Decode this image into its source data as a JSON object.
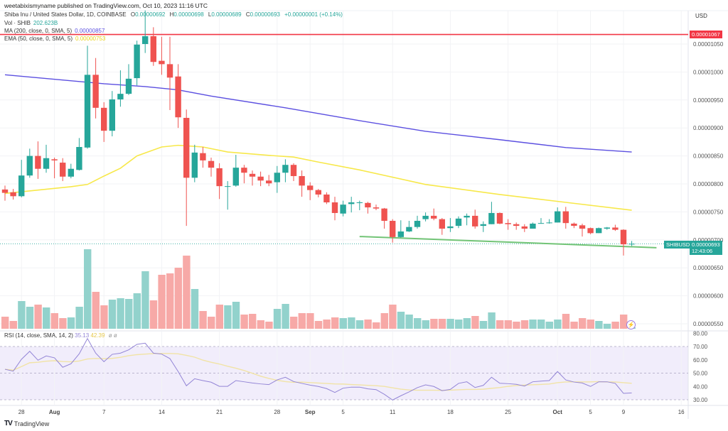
{
  "header": {
    "published": "weetabixismyname published on TradingView.com, Oct 10, 2023 11:16 UTC"
  },
  "legend": {
    "symbol": "Shiba Inu / United States Dollar, 1D, COINBASE",
    "o_label": "O",
    "o": "0.00000692",
    "h_label": "H",
    "h": "0.00000698",
    "l_label": "L",
    "l": "0.00000689",
    "c_label": "C",
    "c": "0.00000693",
    "change": "+0.00000001 (+0.14%)",
    "vol_label": "Vol · SHIB",
    "vol": "202.623B",
    "ma_label": "MA (200, close, 0, SMA, 5)",
    "ma": "0.00000857",
    "ema_label": "EMA (50, close, 0, SMA, 5)",
    "ema": "0.00000753"
  },
  "rsi_legend": {
    "label": "RSI (14, close, SMA, 14, 2)",
    "rsi": "35.13",
    "rsi_ma": "42.39",
    "icons": "ø ø"
  },
  "axis": {
    "currency": "USD",
    "alert_price": "0.00001067",
    "symbol_tag": "SHIBUSD",
    "last_price": "0.00000693",
    "countdown": "12:43:06"
  },
  "footer": {
    "logo": "TV",
    "brand": "TradingView"
  },
  "colors": {
    "up": "#26a69a",
    "down": "#ef5350",
    "vol_up": "#92d2cc",
    "vol_down": "#f7a9a7",
    "ma200": "#5b4fe0",
    "ema50": "#f7e84a",
    "alert_line": "#f23645",
    "trendline": "#72c476",
    "rsi": "#9385d6",
    "rsi_ma": "#f1e3a6",
    "rsi_band": "#f1edfb"
  },
  "chart_data": {
    "type": "candlestick",
    "title": "Shiba Inu / United States Dollar, 1D, COINBASE",
    "price_ticks": [
      "0.00001050",
      "0.00001000",
      "0.00000950",
      "0.00000900",
      "0.00000850",
      "0.00000800",
      "0.00000750",
      "0.00000700",
      "0.00000650",
      "0.00000600",
      "0.00000550"
    ],
    "rsi_ticks": [
      "80.00",
      "70.00",
      "60.00",
      "50.00",
      "40.00",
      "30.00"
    ],
    "x_ticks": [
      {
        "label": "28",
        "date": "2023-07-28",
        "month": false
      },
      {
        "label": "Aug",
        "date": "2023-08-01",
        "month": true
      },
      {
        "label": "7",
        "date": "2023-08-07",
        "month": false
      },
      {
        "label": "14",
        "date": "2023-08-14",
        "month": false
      },
      {
        "label": "21",
        "date": "2023-08-21",
        "month": false
      },
      {
        "label": "28",
        "date": "2023-08-28",
        "month": false
      },
      {
        "label": "Sep",
        "date": "2023-09-01",
        "month": true
      },
      {
        "label": "5",
        "date": "2023-09-05",
        "month": false
      },
      {
        "label": "11",
        "date": "2023-09-11",
        "month": false
      },
      {
        "label": "18",
        "date": "2023-09-18",
        "month": false
      },
      {
        "label": "25",
        "date": "2023-09-25",
        "month": false
      },
      {
        "label": "Oct",
        "date": "2023-10-01",
        "month": true
      },
      {
        "label": "5",
        "date": "2023-10-05",
        "month": false
      },
      {
        "label": "9",
        "date": "2023-10-09",
        "month": false
      },
      {
        "label": "16",
        "date": "2023-10-16",
        "month": false
      }
    ],
    "candle_columns": [
      "date",
      "open",
      "high",
      "low",
      "close",
      "volume"
    ],
    "candles": [
      [
        "2023-07-26",
        7.9e-06,
        7.97e-06,
        7.7e-06,
        7.84e-06,
        1700000000000.0
      ],
      [
        "2023-07-27",
        7.85e-06,
        7.91e-06,
        7.72e-06,
        7.78e-06,
        1100000000000.0
      ],
      [
        "2023-07-28",
        7.78e-06,
        8.43e-06,
        7.76e-06,
        8.15e-06,
        3900000000000.0
      ],
      [
        "2023-07-29",
        8.15e-06,
        8.63e-06,
        8.11e-06,
        8.5e-06,
        3100000000000.0
      ],
      [
        "2023-07-30",
        8.5e-06,
        8.76e-06,
        8.09e-06,
        8.27e-06,
        3400000000000.0
      ],
      [
        "2023-07-31",
        8.27e-06,
        8.7e-06,
        8.2e-06,
        8.46e-06,
        3000000000000.0
      ],
      [
        "2023-08-01",
        8.44e-06,
        8.47e-06,
        8.1e-06,
        8.42e-06,
        2200000000000.0
      ],
      [
        "2023-08-02",
        8.38e-06,
        8.46e-06,
        8.05e-06,
        8.13e-06,
        1500000000000.0
      ],
      [
        "2023-08-03",
        8.13e-06,
        8.36e-06,
        8.1e-06,
        8.27e-06,
        1600000000000.0
      ],
      [
        "2023-08-04",
        8.25e-06,
        8.82e-06,
        8.24e-06,
        8.66e-06,
        3100000000000.0
      ],
      [
        "2023-08-05",
        8.65e-06,
        1.047e-05,
        8.63e-06,
        9.95e-06,
        11200000000000.0
      ],
      [
        "2023-08-06",
        9.95e-06,
        1.025e-05,
        9.17e-06,
        9.36e-06,
        5200000000000.0
      ],
      [
        "2023-08-07",
        9.36e-06,
        9.46e-06,
        8.75e-06,
        8.95e-06,
        3300000000000.0
      ],
      [
        "2023-08-08",
        8.95e-06,
        9.66e-06,
        8.85e-06,
        9.51e-06,
        4100000000000.0
      ],
      [
        "2023-08-09",
        9.51e-06,
        1.003e-05,
        9.38e-06,
        9.61e-06,
        4300000000000.0
      ],
      [
        "2023-08-10",
        9.61e-06,
        1.014e-05,
        9.59e-06,
        9.88e-06,
        4200000000000.0
      ],
      [
        "2023-08-11",
        9.89e-06,
        1.056e-05,
        9.76e-06,
        1.049e-05,
        5000000000000.0
      ],
      [
        "2023-08-12",
        1.05e-05,
        1.11e-05,
        1.034e-05,
        1.064e-05,
        8100000000000.0
      ],
      [
        "2023-08-13",
        1.064e-05,
        1.08e-05,
        1.011e-05,
        1.018e-05,
        4000000000000.0
      ],
      [
        "2023-08-14",
        1.02e-05,
        1.063e-05,
        9.95e-06,
        1.014e-05,
        7600000000000.0
      ],
      [
        "2023-08-15",
        1.014e-05,
        1.063e-05,
        9.32e-06,
        9.9e-06,
        7800000000000.0
      ],
      [
        "2023-08-16",
        9.92e-06,
        1.014e-05,
        9e-06,
        9.19e-06,
        8600000000000.0
      ],
      [
        "2023-08-17",
        9.18e-06,
        9.33e-06,
        7.25e-06,
        8.11e-06,
        10300000000000.0
      ],
      [
        "2023-08-18",
        8.11e-06,
        8.7e-06,
        8.03e-06,
        8.56e-06,
        5600000000000.0
      ],
      [
        "2023-08-19",
        8.55e-06,
        8.66e-06,
        8.29e-06,
        8.42e-06,
        2500000000000.0
      ],
      [
        "2023-08-20",
        8.41e-06,
        8.47e-06,
        8.13e-06,
        8.29e-06,
        1700000000000.0
      ],
      [
        "2023-08-21",
        8.28e-06,
        8.37e-06,
        7.73e-06,
        7.96e-06,
        3400000000000.0
      ],
      [
        "2023-08-22",
        7.95e-06,
        8.05e-06,
        7.54e-06,
        7.96e-06,
        3300000000000.0
      ],
      [
        "2023-08-23",
        7.97e-06,
        8.52e-06,
        7.95e-06,
        8.29e-06,
        3800000000000.0
      ],
      [
        "2023-08-24",
        8.29e-06,
        8.34e-06,
        8.01e-06,
        8.2e-06,
        2000000000000.0
      ],
      [
        "2023-08-25",
        8.18e-06,
        8.24e-06,
        7.97e-06,
        8.13e-06,
        2100000000000.0
      ],
      [
        "2023-08-26",
        8.13e-06,
        8.22e-06,
        7.96e-06,
        8.06e-06,
        1200000000000.0
      ],
      [
        "2023-08-27",
        8.06e-06,
        8.16e-06,
        7.96e-06,
        8.01e-06,
        1000000000000.0
      ],
      [
        "2023-08-28",
        8.03e-06,
        8.32e-06,
        7.84e-06,
        8.2e-06,
        2800000000000.0
      ],
      [
        "2023-08-29",
        8.2e-06,
        8.44e-06,
        8.03e-06,
        8.34e-06,
        3500000000000.0
      ],
      [
        "2023-08-30",
        8.34e-06,
        8.37e-06,
        8.05e-06,
        8.14e-06,
        1700000000000.0
      ],
      [
        "2023-08-31",
        8.14e-06,
        8.24e-06,
        7.77e-06,
        7.97e-06,
        2200000000000.0
      ],
      [
        "2023-09-01",
        7.97e-06,
        8.03e-06,
        7.71e-06,
        7.89e-06,
        2200000000000.0
      ],
      [
        "2023-09-02",
        7.89e-06,
        7.91e-06,
        7.76e-06,
        7.81e-06,
        1100000000000.0
      ],
      [
        "2023-09-03",
        7.81e-06,
        7.85e-06,
        7.64e-06,
        7.67e-06,
        1300000000000.0
      ],
      [
        "2023-09-04",
        7.67e-06,
        7.77e-06,
        7.35e-06,
        7.48e-06,
        1600000000000.0
      ],
      [
        "2023-09-05",
        7.47e-06,
        7.7e-06,
        7.42e-06,
        7.63e-06,
        1500000000000.0
      ],
      [
        "2023-09-06",
        7.64e-06,
        7.77e-06,
        7.49e-06,
        7.67e-06,
        1600000000000.0
      ],
      [
        "2023-09-07",
        7.66e-06,
        7.7e-06,
        7.53e-06,
        7.67e-06,
        1200000000000.0
      ],
      [
        "2023-09-08",
        7.66e-06,
        7.68e-06,
        7.47e-06,
        7.58e-06,
        1300000000000.0
      ],
      [
        "2023-09-09",
        7.58e-06,
        7.63e-06,
        7.53e-06,
        7.56e-06,
        900000000000.0
      ],
      [
        "2023-09-10",
        7.56e-06,
        7.57e-06,
        7.2e-06,
        7.34e-06,
        2200000000000.0
      ],
      [
        "2023-09-11",
        7.34e-06,
        7.37e-06,
        6.95e-06,
        7.05e-06,
        3400000000000.0
      ],
      [
        "2023-09-12",
        7.05e-06,
        7.35e-06,
        7.04e-06,
        7.15e-06,
        2400000000000.0
      ],
      [
        "2023-09-13",
        7.15e-06,
        7.34e-06,
        7.14e-06,
        7.23e-06,
        2000000000000.0
      ],
      [
        "2023-09-14",
        7.23e-06,
        7.43e-06,
        7.2e-06,
        7.34e-06,
        1500000000000.0
      ],
      [
        "2023-09-15",
        7.37e-06,
        7.49e-06,
        7.33e-06,
        7.43e-06,
        1200000000000.0
      ],
      [
        "2023-09-16",
        7.43e-06,
        7.56e-06,
        7.35e-06,
        7.38e-06,
        1400000000000.0
      ],
      [
        "2023-09-17",
        7.37e-06,
        7.39e-06,
        7.09e-06,
        7.2e-06,
        1400000000000.0
      ],
      [
        "2023-09-18",
        7.21e-06,
        7.39e-06,
        7.14e-06,
        7.24e-06,
        1400000000000.0
      ],
      [
        "2023-09-19",
        7.25e-06,
        7.42e-06,
        7.21e-06,
        7.38e-06,
        1300000000000.0
      ],
      [
        "2023-09-20",
        7.4e-06,
        7.47e-06,
        7.26e-06,
        7.43e-06,
        1500000000000.0
      ],
      [
        "2023-09-21",
        7.43e-06,
        7.54e-06,
        7.2e-06,
        7.24e-06,
        1800000000000.0
      ],
      [
        "2023-09-22",
        7.25e-06,
        7.33e-06,
        7.14e-06,
        7.28e-06,
        1100000000000.0
      ],
      [
        "2023-09-23",
        7.28e-06,
        7.68e-06,
        7.28e-06,
        7.48e-06,
        2300000000000.0
      ],
      [
        "2023-09-24",
        7.48e-06,
        7.49e-06,
        7.28e-06,
        7.29e-06,
        1200000000000.0
      ],
      [
        "2023-09-25",
        7.3e-06,
        7.37e-06,
        7.18e-06,
        7.28e-06,
        1200000000000.0
      ],
      [
        "2023-09-26",
        7.28e-06,
        7.31e-06,
        7.18e-06,
        7.25e-06,
        1000000000000.0
      ],
      [
        "2023-09-27",
        7.24e-06,
        7.28e-06,
        7.14e-06,
        7.2e-06,
        1200000000000.0
      ],
      [
        "2023-09-28",
        7.2e-06,
        7.31e-06,
        7.2e-06,
        7.29e-06,
        1300000000000.0
      ],
      [
        "2023-09-29",
        7.29e-06,
        7.39e-06,
        7.29e-06,
        7.3e-06,
        1300000000000.0
      ],
      [
        "2023-09-30",
        7.3e-06,
        7.37e-06,
        7.29e-06,
        7.31e-06,
        1000000000000.0
      ],
      [
        "2023-10-01",
        7.31e-06,
        7.58e-06,
        7.31e-06,
        7.51e-06,
        1300000000000.0
      ],
      [
        "2023-10-02",
        7.51e-06,
        7.59e-06,
        7.2e-06,
        7.3e-06,
        2100000000000.0
      ],
      [
        "2023-10-03",
        7.29e-06,
        7.31e-06,
        7.21e-06,
        7.25e-06,
        1000000000000.0
      ],
      [
        "2023-10-04",
        7.26e-06,
        7.29e-06,
        7.06e-06,
        7.2e-06,
        1500000000000.0
      ],
      [
        "2023-10-05",
        7.21e-06,
        7.22e-06,
        7.1e-06,
        7.12e-06,
        1300000000000.0
      ],
      [
        "2023-10-06",
        7.12e-06,
        7.22e-06,
        7.12e-06,
        7.21e-06,
        1100000000000.0
      ],
      [
        "2023-10-07",
        7.2e-06,
        7.23e-06,
        7.18e-06,
        7.22e-06,
        700000000000.0
      ],
      [
        "2023-10-08",
        7.22e-06,
        7.27e-06,
        7.16e-06,
        7.18e-06,
        1000000000000.0
      ],
      [
        "2023-10-09",
        7.18e-06,
        7.19e-06,
        6.72e-06,
        6.92e-06,
        2000000000000.0
      ],
      [
        "2023-10-10",
        6.92e-06,
        6.98e-06,
        6.89e-06,
        6.93e-06,
        202623000000.0
      ]
    ],
    "ma200": [
      [
        "2023-07-26",
        9.95e-06
      ],
      [
        "2023-08-07",
        9.79e-06
      ],
      [
        "2023-08-12",
        9.74e-06
      ],
      [
        "2023-08-16",
        9.68e-06
      ],
      [
        "2023-08-20",
        9.57e-06
      ],
      [
        "2023-08-29",
        9.36e-06
      ],
      [
        "2023-09-07",
        9.13e-06
      ],
      [
        "2023-09-15",
        8.94e-06
      ],
      [
        "2023-09-24",
        8.79e-06
      ],
      [
        "2023-10-02",
        8.65e-06
      ],
      [
        "2023-10-10",
        8.57e-06
      ]
    ],
    "ema50": [
      [
        "2023-07-26",
        7.83e-06
      ],
      [
        "2023-07-28",
        7.86e-06
      ],
      [
        "2023-08-03",
        7.95e-06
      ],
      [
        "2023-08-05",
        7.99e-06
      ],
      [
        "2023-08-07",
        8.14e-06
      ],
      [
        "2023-08-09",
        8.28e-06
      ],
      [
        "2023-08-11",
        8.5e-06
      ],
      [
        "2023-08-14",
        8.66e-06
      ],
      [
        "2023-08-16",
        8.69e-06
      ],
      [
        "2023-08-19",
        8.66e-06
      ],
      [
        "2023-08-22",
        8.57e-06
      ],
      [
        "2023-08-27",
        8.51e-06
      ],
      [
        "2023-08-30",
        8.48e-06
      ],
      [
        "2023-09-02",
        8.39e-06
      ],
      [
        "2023-09-07",
        8.25e-06
      ],
      [
        "2023-09-15",
        7.99e-06
      ],
      [
        "2023-09-24",
        7.81e-06
      ],
      [
        "2023-10-02",
        7.67e-06
      ],
      [
        "2023-10-10",
        7.53e-06
      ]
    ],
    "alert_level": 1.067e-05,
    "trendline": [
      [
        "2023-09-07",
        7.06e-06
      ],
      [
        "2023-10-13",
        6.86e-06
      ]
    ],
    "rsi": {
      "length": 14,
      "ma_length": 14,
      "bands": [
        70,
        50,
        30
      ],
      "range": [
        25,
        85
      ],
      "values": [
        52.9,
        51.5,
        60.4,
        66.4,
        59.7,
        62.9,
        61.5,
        54.4,
        57.0,
        64.5,
        76.0,
        65.0,
        58.6,
        64.1,
        65.0,
        67.5,
        71.6,
        72.5,
        65.0,
        64.3,
        60.9,
        51.2,
        40.5,
        45.8,
        44.4,
        43.2,
        40.1,
        40.1,
        44.4,
        43.5,
        42.6,
        41.9,
        41.4,
        44.9,
        46.9,
        43.7,
        42.3,
        41.0,
        40.0,
        38.4,
        35.5,
        38.7,
        39.5,
        39.5,
        38.2,
        37.6,
        34.1,
        29.8,
        33.0,
        35.9,
        39.1,
        41.2,
        40.0,
        36.8,
        37.8,
        42.3,
        43.5,
        39.2,
        40.8,
        46.9,
        42.4,
        42.1,
        41.6,
        40.3,
        43.5,
        44.0,
        44.4,
        51.2,
        44.9,
        43.3,
        42.6,
        40.0,
        43.5,
        43.5,
        42.3,
        34.8,
        35.13
      ]
    }
  }
}
